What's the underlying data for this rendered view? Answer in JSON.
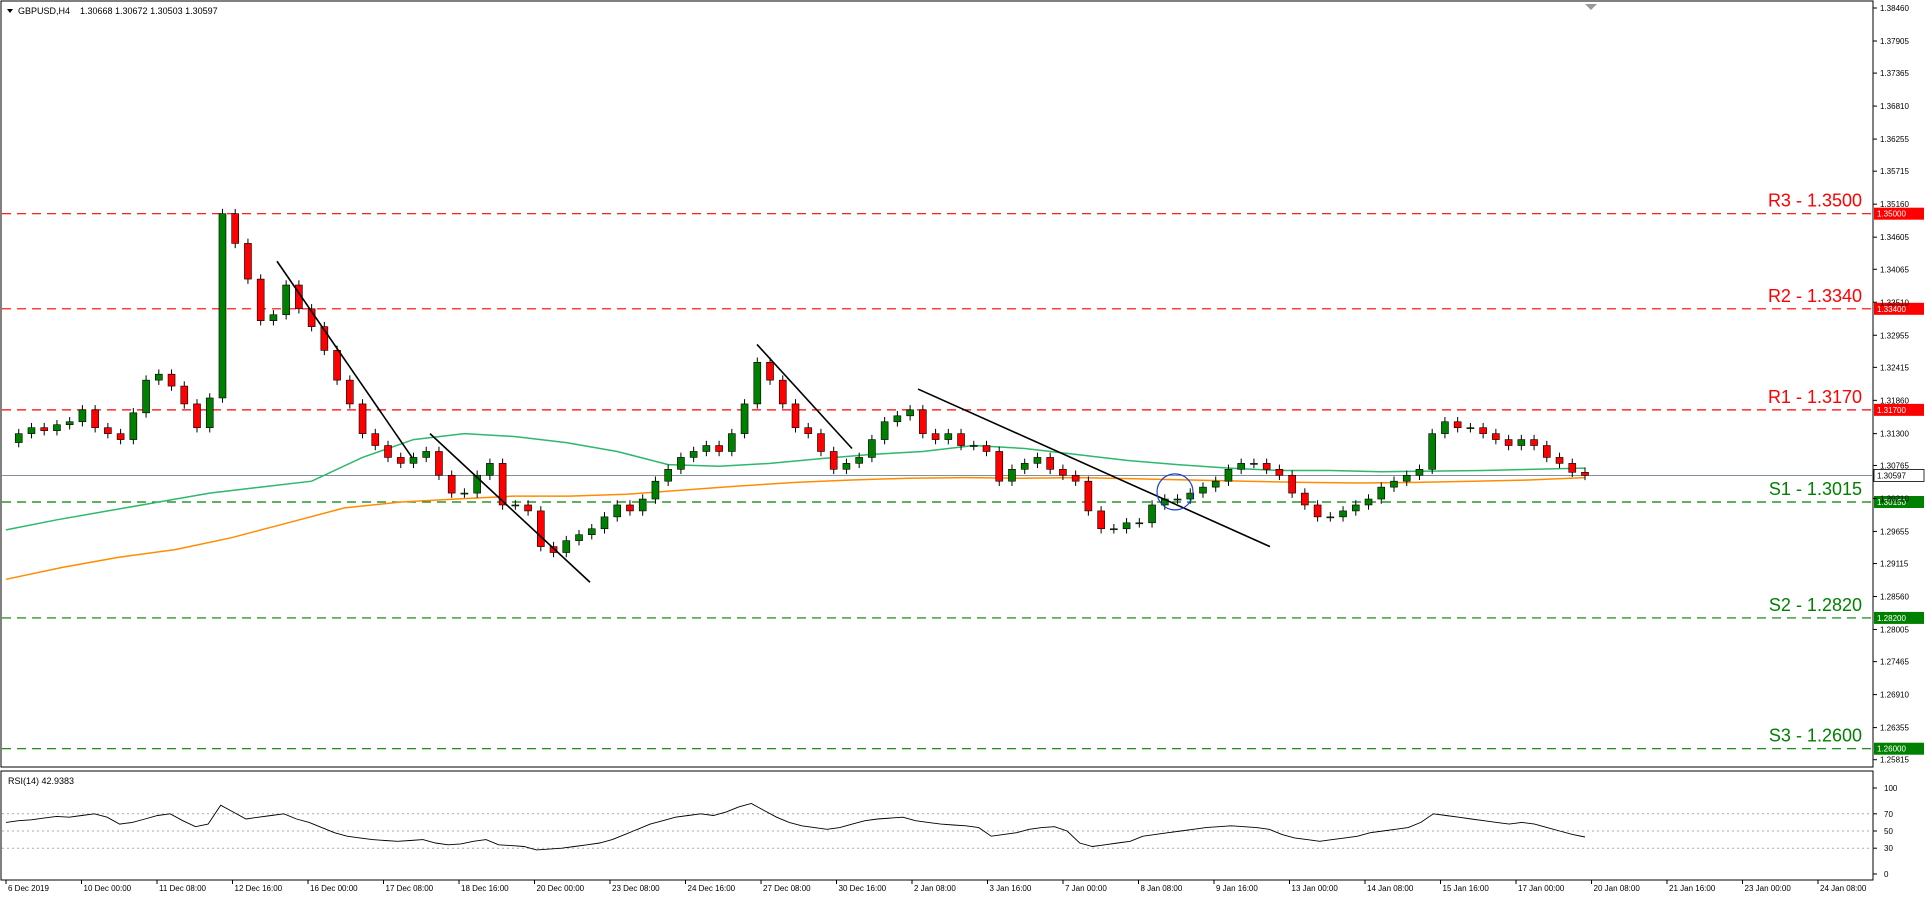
{
  "chart_header": {
    "symbol": "GBPUSD,H4",
    "ohlc": "1.30668 1.30672 1.30503 1.30597"
  },
  "rsi_header": "RSI(14) 42.9383",
  "chart_data": [
    {
      "type": "candlestick",
      "symbol": "GBPUSD",
      "timeframe": "H4",
      "ylim": [
        1.2581,
        1.3846
      ],
      "y_ticks": [
        "1.38460",
        "1.37905",
        "1.37365",
        "1.36810",
        "1.36255",
        "1.35715",
        "1.35160",
        "1.34605",
        "1.34065",
        "1.33510",
        "1.32955",
        "1.32415",
        "1.31860",
        "1.31300",
        "1.30765",
        "1.30210",
        "1.29655",
        "1.29115",
        "1.28560",
        "1.28005",
        "1.27465",
        "1.26910",
        "1.26355",
        "1.25815"
      ],
      "x_labels": [
        "6 Dec 2019",
        "10 Dec 00:00",
        "11 Dec 08:00",
        "12 Dec 16:00",
        "16 Dec 00:00",
        "17 Dec 08:00",
        "18 Dec 16:00",
        "20 Dec 00:00",
        "23 Dec 08:00",
        "24 Dec 16:00",
        "27 Dec 08:00",
        "30 Dec 16:00",
        "2 Jan 08:00",
        "3 Jan 16:00",
        "7 Jan 00:00",
        "8 Jan 08:00",
        "9 Jan 16:00",
        "13 Jan 00:00",
        "14 Jan 08:00",
        "15 Jan 16:00",
        "17 Jan 00:00",
        "20 Jan 08:00",
        "21 Jan 16:00",
        "23 Jan 00:00",
        "24 Jan 08:00"
      ],
      "close_path": [
        1.3115,
        1.313,
        1.314,
        1.3135,
        1.3145,
        1.315,
        1.317,
        1.314,
        1.313,
        1.312,
        1.3165,
        1.322,
        1.323,
        1.321,
        1.318,
        1.314,
        1.319,
        1.35,
        1.345,
        1.339,
        1.332,
        1.333,
        1.338,
        1.334,
        1.331,
        1.327,
        1.322,
        1.318,
        1.313,
        1.311,
        1.309,
        1.308,
        1.309,
        1.31,
        1.306,
        1.303,
        1.303,
        1.306,
        1.308,
        1.301,
        1.301,
        1.3,
        1.294,
        1.293,
        1.295,
        1.296,
        1.297,
        1.299,
        1.301,
        1.3,
        1.302,
        1.305,
        1.307,
        1.309,
        1.31,
        1.311,
        1.31,
        1.313,
        1.318,
        1.325,
        1.322,
        1.318,
        1.314,
        1.313,
        1.31,
        1.307,
        1.308,
        1.309,
        1.312,
        1.315,
        1.316,
        1.317,
        1.313,
        1.312,
        1.313,
        1.311,
        1.311,
        1.31,
        1.305,
        1.307,
        1.308,
        1.309,
        1.307,
        1.306,
        1.305,
        1.3,
        1.297,
        1.297,
        1.298,
        1.298,
        1.301,
        1.302,
        1.302,
        1.303,
        1.304,
        1.305,
        1.307,
        1.308,
        1.308,
        1.307,
        1.306,
        1.303,
        1.301,
        1.299,
        1.299,
        1.3,
        1.301,
        1.302,
        1.304,
        1.305,
        1.306,
        1.307,
        1.313,
        1.315,
        1.314,
        1.314,
        1.313,
        1.312,
        1.311,
        1.312,
        1.311,
        1.309,
        1.308,
        1.3065,
        1.30597
      ],
      "sma_green_path": [
        1.2968,
        1.2985,
        1.3,
        1.3015,
        1.303,
        1.304,
        1.305,
        1.309,
        1.312,
        1.313,
        1.3125,
        1.3115,
        1.31,
        1.3078,
        1.3075,
        1.308,
        1.3088,
        1.3095,
        1.31,
        1.311,
        1.3105,
        1.3095,
        1.3085,
        1.3078,
        1.3072,
        1.3068,
        1.3068,
        1.3066,
        1.3067,
        1.3068,
        1.307,
        1.3072
      ],
      "ema_orange_path": [
        1.2885,
        1.2905,
        1.2922,
        1.2935,
        1.2955,
        1.298,
        1.3005,
        1.3015,
        1.302,
        1.3025,
        1.3025,
        1.3028,
        1.3035,
        1.3042,
        1.3048,
        1.3052,
        1.3055,
        1.3056,
        1.3055,
        1.3056,
        1.3054,
        1.3052,
        1.305,
        1.3048,
        1.3047,
        1.3048,
        1.305,
        1.3052,
        1.3056
      ],
      "current_price": "1.30597",
      "levels": [
        {
          "label": "R3 - 1.3500",
          "value": 1.35,
          "tag": "1.35000",
          "color": "#ff0000"
        },
        {
          "label": "R2 - 1.3340",
          "value": 1.334,
          "tag": "1.33400",
          "color": "#ff0000"
        },
        {
          "label": "R1 - 1.3170",
          "value": 1.317,
          "tag": "1.31700",
          "color": "#ff0000"
        },
        {
          "label": "S1 - 1.3015",
          "value": 1.3015,
          "tag": "1.30150",
          "color": "#008000"
        },
        {
          "label": "S2 - 1.2820",
          "value": 1.282,
          "tag": "1.28200",
          "color": "#008000"
        },
        {
          "label": "S3 - 1.2600",
          "value": 1.26,
          "tag": "1.26000",
          "color": "#008000"
        }
      ],
      "colors": {
        "bull": "#008000",
        "bear": "#ff0000",
        "sma": "#2db86b",
        "ema": "#ff8c00",
        "price_line": "#708090"
      }
    },
    {
      "type": "line",
      "name": "RSI(14)",
      "value": 42.9383,
      "ylim": [
        0,
        100
      ],
      "y_ticks": [
        "100",
        "70",
        "50",
        "30",
        "0"
      ],
      "levels": [
        70,
        50,
        30
      ],
      "values": [
        60,
        62,
        63,
        65,
        67,
        66,
        68,
        70,
        66,
        58,
        60,
        64,
        68,
        70,
        62,
        55,
        58,
        80,
        72,
        64,
        66,
        68,
        70,
        64,
        60,
        54,
        48,
        44,
        42,
        40,
        39,
        38,
        39,
        40,
        36,
        34,
        35,
        38,
        40,
        34,
        33,
        32,
        28,
        29,
        30,
        32,
        34,
        36,
        40,
        46,
        52,
        58,
        62,
        66,
        68,
        70,
        68,
        72,
        78,
        82,
        74,
        66,
        60,
        56,
        54,
        52,
        54,
        58,
        62,
        64,
        65,
        66,
        62,
        60,
        58,
        57,
        56,
        54,
        44,
        46,
        48,
        52,
        54,
        55,
        50,
        36,
        32,
        34,
        36,
        38,
        44,
        46,
        48,
        50,
        52,
        54,
        55,
        56,
        55,
        54,
        52,
        46,
        42,
        40,
        38,
        40,
        42,
        44,
        48,
        50,
        52,
        54,
        60,
        70,
        68,
        66,
        64,
        62,
        60,
        58,
        60,
        58,
        54,
        50,
        46,
        43
      ]
    }
  ]
}
